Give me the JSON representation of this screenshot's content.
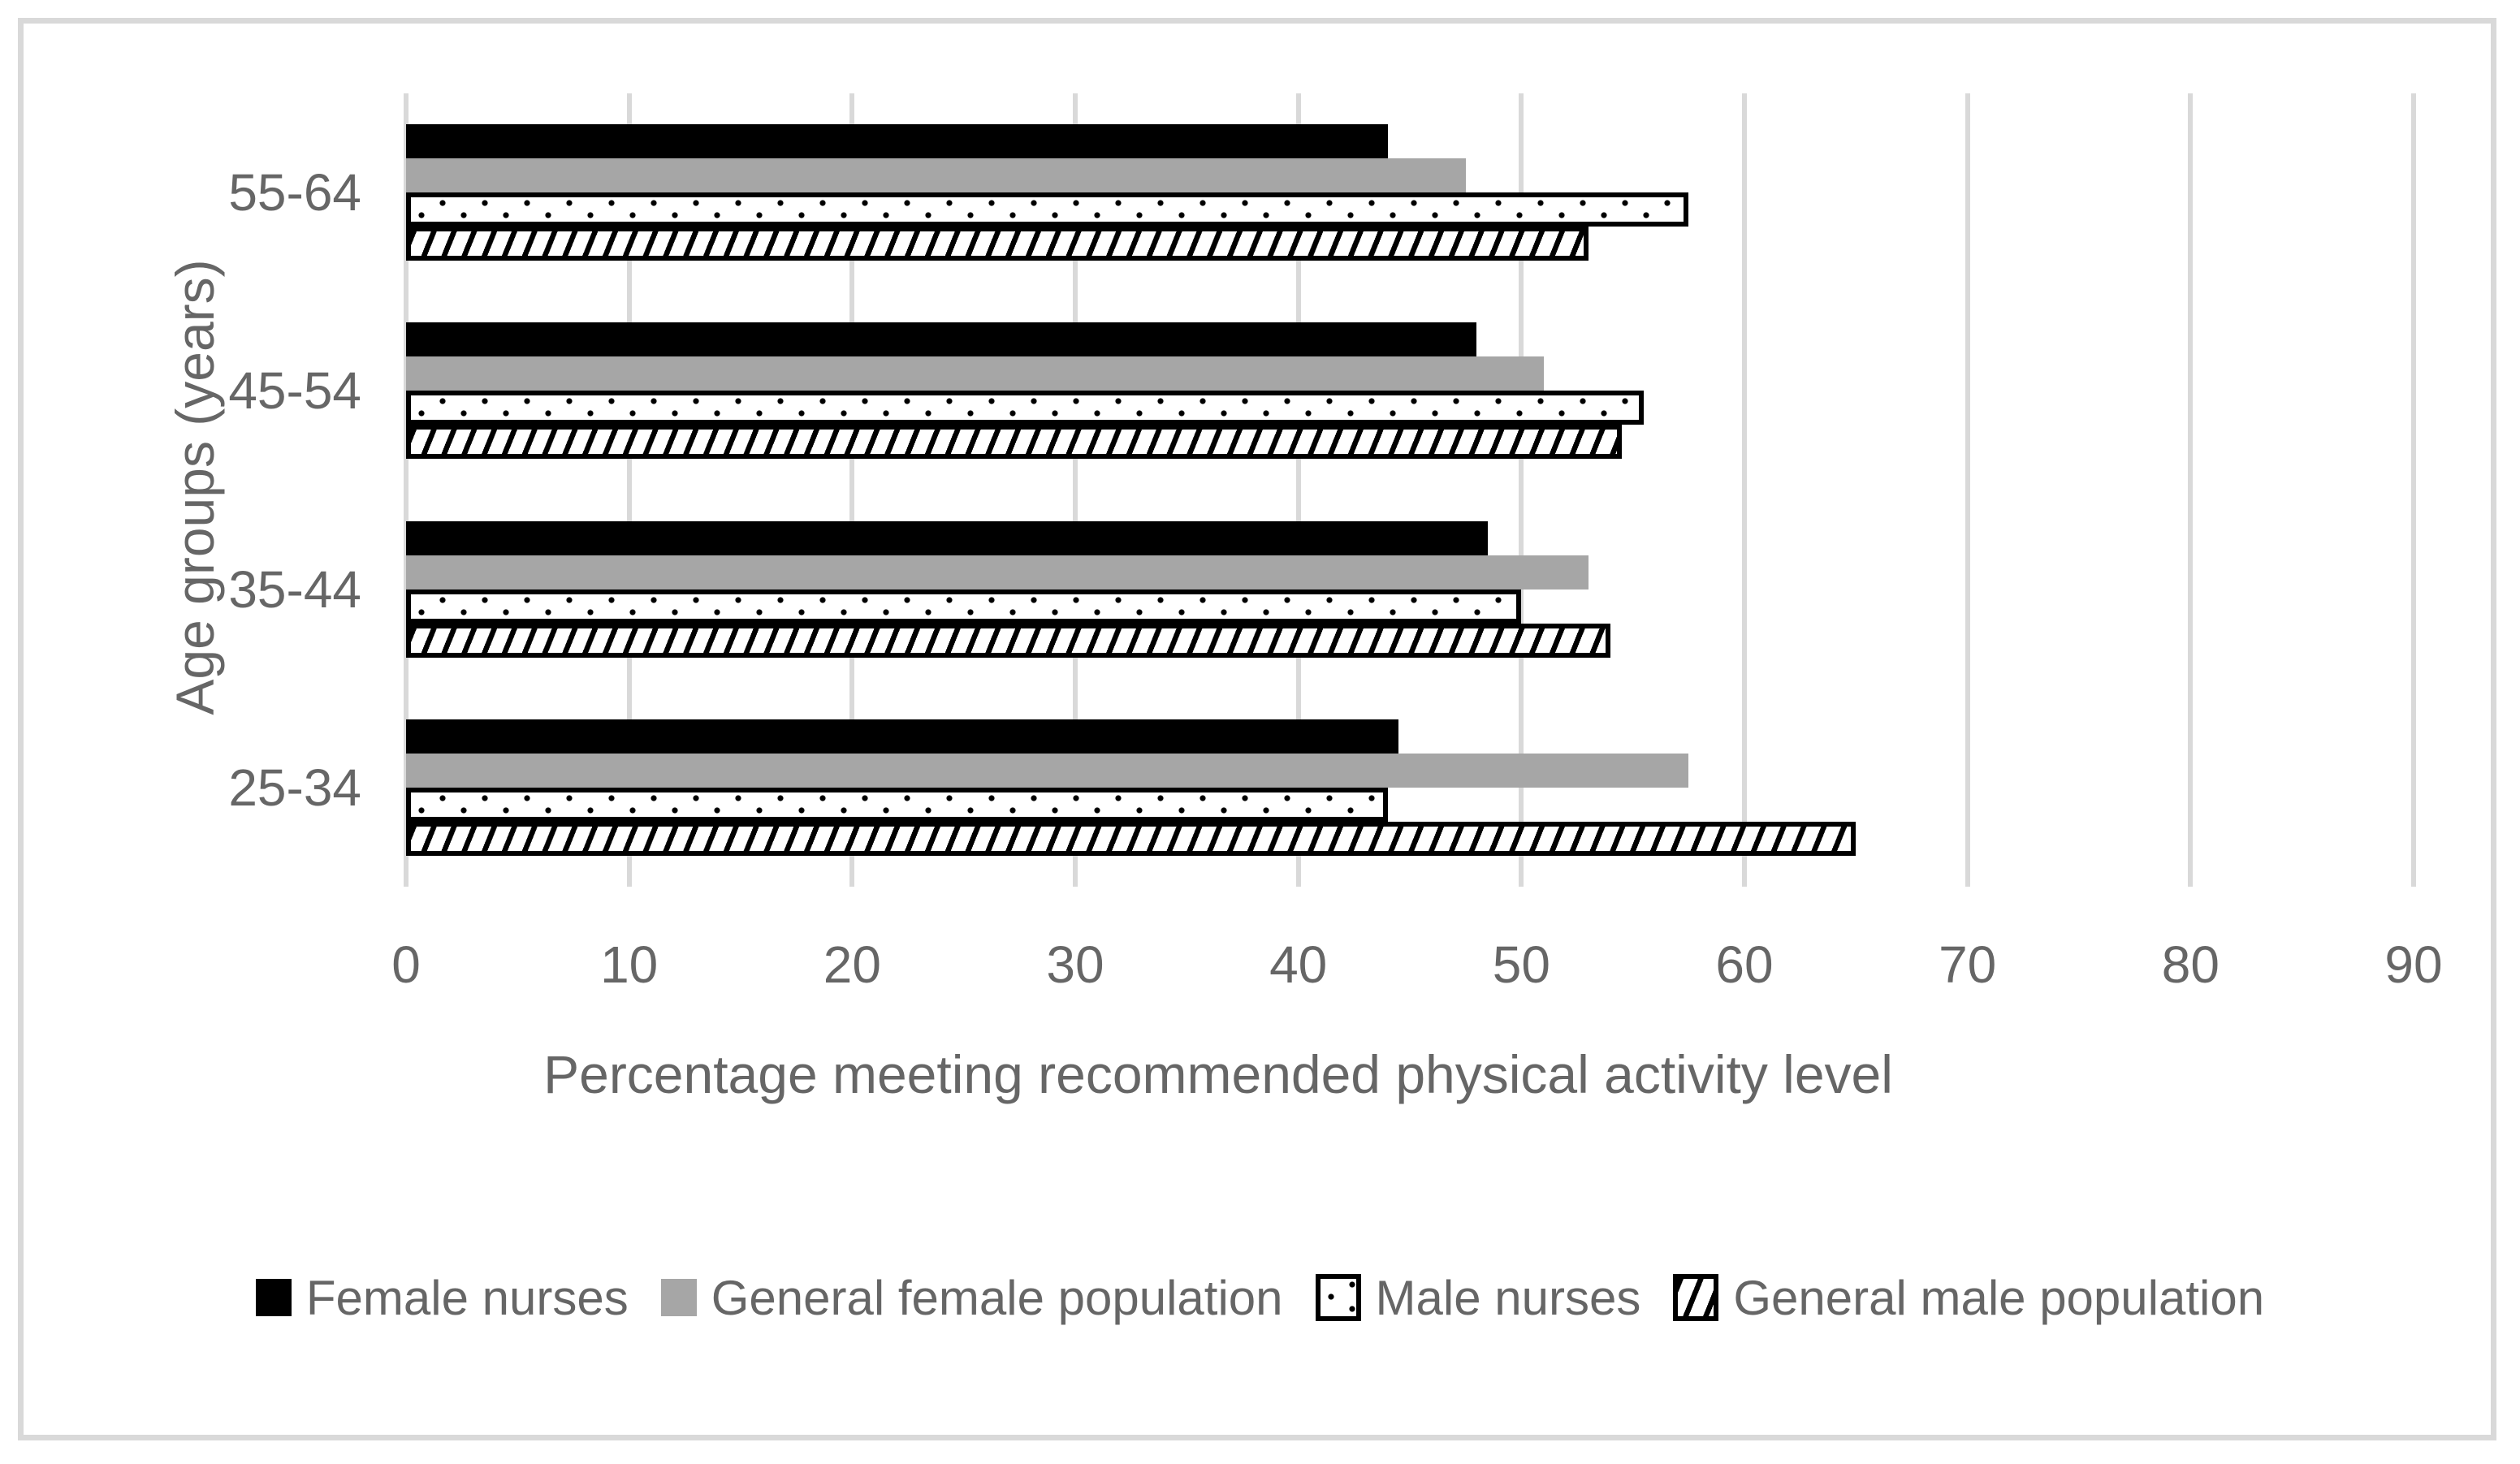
{
  "chart_data": {
    "type": "bar",
    "orientation": "horizontal",
    "title": "",
    "xlabel": "Percentage meeting recommended physical activity level",
    "ylabel": "Age groups (years)",
    "categories": [
      "55-64",
      "45-54",
      "35-44",
      "25-34"
    ],
    "categories_order": "top to bottom",
    "series": [
      {
        "name": "Female nurses",
        "pattern": "solid-black",
        "values": [
          44,
          48,
          48.5,
          44.5
        ]
      },
      {
        "name": "General female population",
        "pattern": "solid-gray",
        "values": [
          47.5,
          51,
          53,
          57.5
        ]
      },
      {
        "name": "Male nurses",
        "pattern": "dotted",
        "values": [
          57.5,
          55.5,
          50,
          44
        ]
      },
      {
        "name": "General male population",
        "pattern": "diagonal-hatch",
        "values": [
          53,
          54.5,
          54,
          65
        ]
      }
    ],
    "xlim": [
      0,
      90
    ],
    "xticks": [
      0,
      10,
      20,
      30,
      40,
      50,
      60,
      70,
      80,
      90
    ],
    "grid": "vertical gridlines on",
    "legend_position": "bottom"
  },
  "colors": {
    "bar_black": "#000000",
    "bar_gray": "#a6a6a6",
    "pattern_foreground": "#000000",
    "pattern_background": "#ffffff",
    "text": "#666666",
    "gridline": "#d9d9d9",
    "figure_border": "#d9d9d9"
  }
}
